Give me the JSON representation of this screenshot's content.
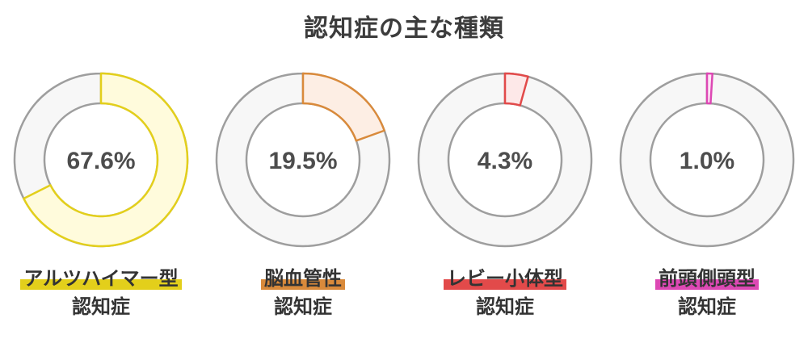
{
  "title": "認知症の主な種類",
  "chart_data": [
    {
      "type": "pie",
      "name": "アルツハイマー型",
      "sub": "認知症",
      "value": 67.6,
      "label": "67.6%",
      "stroke": "#e3cf1b",
      "fill": "#fffbdc"
    },
    {
      "type": "pie",
      "name": "脳血管性",
      "sub": "認知症",
      "value": 19.5,
      "label": "19.5%",
      "stroke": "#d98a3b",
      "fill": "#fdeee4"
    },
    {
      "type": "pie",
      "name": "レビー小体型",
      "sub": "認知症",
      "value": 4.3,
      "label": "4.3%",
      "stroke": "#e24a4a",
      "fill": "#fde8e8"
    },
    {
      "type": "pie",
      "name": "前頭側頭型",
      "sub": "認知症",
      "value": 1.0,
      "label": "1.0%",
      "stroke": "#dd48b4",
      "fill": "#fde4f4"
    }
  ],
  "colors": {
    "ring_bg": "#f7f7f7",
    "ring_outline": "#9e9e9e"
  }
}
